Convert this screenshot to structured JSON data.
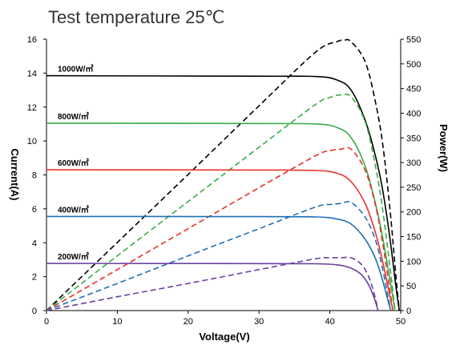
{
  "chart_data": {
    "type": "line",
    "title": "Test temperature 25℃",
    "xlabel": "Voltage(V)",
    "ylabel_left": "Current(A)",
    "ylabel_right": "Power(W)",
    "xlim": [
      0,
      50
    ],
    "ylim_left": [
      0,
      16
    ],
    "ylim_right": [
      0,
      550
    ],
    "xticks": [
      "0",
      "10",
      "20",
      "30",
      "40",
      "50"
    ],
    "yticks_left": [
      "0",
      "2",
      "4",
      "6",
      "8",
      "10",
      "12",
      "14",
      "16"
    ],
    "yticks_right": [
      "0",
      "50",
      "100",
      "150",
      "200",
      "250",
      "300",
      "350",
      "400",
      "450",
      "500",
      "550"
    ],
    "grid": false,
    "series": [
      {
        "name": "1000W/㎡",
        "color": "#000000",
        "current": {
          "x": [
            0,
            30,
            38,
            41,
            43,
            45,
            46.5,
            47.5,
            48.5,
            49.3,
            49.8
          ],
          "y": [
            13.85,
            13.82,
            13.8,
            13.6,
            13.0,
            11.2,
            9.0,
            7.0,
            4.2,
            1.5,
            0
          ]
        },
        "power": {
          "x": [
            0,
            10,
            20,
            30,
            38,
            41,
            42,
            43,
            45,
            46.5,
            47.5,
            48.5,
            49.3,
            49.8
          ],
          "y": [
            0,
            138,
            276,
            415,
            524,
            545,
            548,
            545,
            504,
            418,
            333,
            204,
            74,
            0
          ]
        }
      },
      {
        "name": "800W/㎡",
        "color": "#3aaa47",
        "current": {
          "x": [
            0,
            30,
            38,
            41,
            43,
            45,
            46.5,
            47.5,
            48.5,
            49.2
          ],
          "y": [
            11.05,
            11.03,
            11.0,
            10.8,
            10.2,
            8.5,
            6.2,
            4.2,
            1.8,
            0
          ]
        },
        "power": {
          "x": [
            0,
            10,
            20,
            30,
            38,
            40,
            41.5,
            43,
            45,
            46.5,
            47.5,
            48.5,
            49.2
          ],
          "y": [
            0,
            111,
            221,
            331,
            418,
            432,
            437,
            433,
            382,
            288,
            200,
            87,
            0
          ]
        }
      },
      {
        "name": "600W/㎡",
        "color": "#e8322c",
        "current": {
          "x": [
            0,
            30,
            38,
            41,
            43,
            45,
            46.5,
            47.5,
            48.4,
            48.9
          ],
          "y": [
            8.3,
            8.29,
            8.26,
            8.1,
            7.6,
            6.3,
            4.5,
            2.8,
            1.0,
            0
          ]
        },
        "power": {
          "x": [
            0,
            10,
            20,
            30,
            38,
            40,
            41.5,
            43,
            45,
            46.5,
            47.5,
            48.4,
            48.9
          ],
          "y": [
            0,
            83,
            166,
            249,
            314,
            324,
            327,
            327,
            284,
            209,
            133,
            48,
            0
          ]
        }
      },
      {
        "name": "400W/㎡",
        "color": "#1f6fb4",
        "current": {
          "x": [
            0,
            30,
            38,
            41,
            43,
            45,
            46.5,
            47.5,
            48.2,
            48.6
          ],
          "y": [
            5.55,
            5.54,
            5.52,
            5.4,
            5.1,
            4.2,
            3.0,
            1.7,
            0.6,
            0
          ]
        },
        "power": {
          "x": [
            0,
            10,
            20,
            30,
            38,
            40,
            41.5,
            43,
            45,
            46.5,
            47.5,
            48.2,
            48.6
          ],
          "y": [
            0,
            55,
            111,
            166,
            210,
            215,
            217,
            219,
            189,
            140,
            81,
            29,
            0
          ]
        }
      },
      {
        "name": "200W/㎡",
        "color": "#6b3fa0",
        "current": {
          "x": [
            0,
            30,
            38,
            41,
            43,
            44.5,
            45.5,
            46.3,
            46.8
          ],
          "y": [
            2.78,
            2.77,
            2.76,
            2.7,
            2.5,
            2.1,
            1.5,
            0.7,
            0
          ]
        },
        "power": {
          "x": [
            0,
            10,
            20,
            30,
            38,
            40,
            41.5,
            43,
            44.5,
            45.5,
            46.3,
            46.8
          ],
          "y": [
            0,
            28,
            55,
            83,
            105,
            107,
            107,
            107,
            93,
            68,
            32,
            0
          ]
        }
      }
    ]
  }
}
